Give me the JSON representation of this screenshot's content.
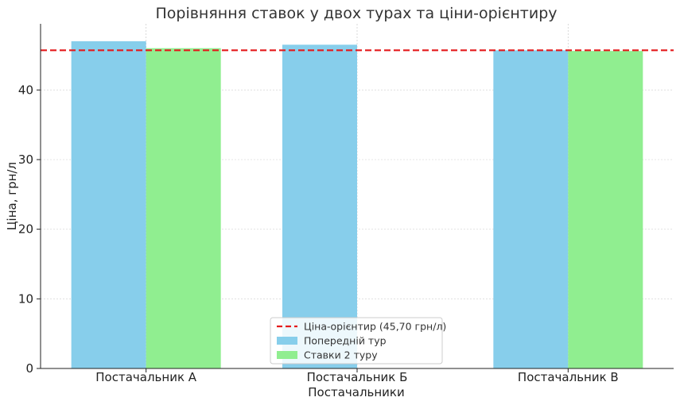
{
  "chart_data": {
    "type": "bar",
    "title": "Порівняння ставок у двох турах та ціни-орієнтиру",
    "xlabel": "Постачальники",
    "ylabel": "Ціна, грн/л",
    "categories": [
      "Постачальник А",
      "Постачальник Б",
      "Постачальник В"
    ],
    "series": [
      {
        "name": "Попередній тур",
        "values": [
          47.0,
          46.5,
          45.7
        ],
        "color": "#87ceeb"
      },
      {
        "name": "Ставки 2 туру",
        "values": [
          46.0,
          null,
          45.6
        ],
        "color": "#90ee90"
      }
    ],
    "reference_line": {
      "name": "Ціна-орієнтир (45,70 грн/л)",
      "value": 45.7,
      "color": "#e41a1c",
      "style": "dashed"
    },
    "ylim": [
      0,
      49.5
    ],
    "yticks": [
      0,
      10,
      20,
      30,
      40
    ],
    "grid": true,
    "legend_position": "bottom-center"
  }
}
